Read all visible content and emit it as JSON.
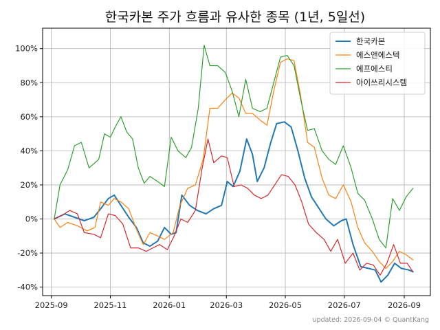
{
  "chart_data": {
    "type": "line",
    "title": "한국카본 주가 흐름과 유사한 종목 (1년, 5일선)",
    "footer": "updated: 2026-09-04 © QuantKang",
    "y_tick_values": [
      -40,
      -20,
      0,
      20,
      40,
      60,
      80,
      100
    ],
    "y_tick_labels": [
      "-40%",
      "-20%",
      "0%",
      "20%",
      "40%",
      "60%",
      "80%",
      "100%"
    ],
    "ylim": [
      -45,
      112
    ],
    "xlim": [
      "2025-08-23",
      "2026-09-28"
    ],
    "x_ticks": [
      "2025-09-01",
      "2025-11-01",
      "2026-01-01",
      "2026-03-01",
      "2026-05-01",
      "2026-07-01",
      "2026-09-01"
    ],
    "x_tick_labels": [
      "2025-09",
      "2025-11",
      "2026-01",
      "2026-03",
      "2026-05",
      "2026-07",
      "2026-09"
    ],
    "grid": true,
    "legend_position": "top-right",
    "series": [
      {
        "name": "한국카본",
        "color": "#1f77b4",
        "width": 2,
        "points": [
          [
            "2025-09-04",
            0
          ],
          [
            "2025-09-15",
            3
          ],
          [
            "2025-09-25",
            1
          ],
          [
            "2025-10-05",
            -1
          ],
          [
            "2025-10-15",
            1
          ],
          [
            "2025-10-22",
            6
          ],
          [
            "2025-10-30",
            12
          ],
          [
            "2025-11-05",
            14
          ],
          [
            "2025-11-12",
            8
          ],
          [
            "2025-11-20",
            1
          ],
          [
            "2025-11-28",
            -5
          ],
          [
            "2025-12-05",
            -14
          ],
          [
            "2025-12-12",
            -16
          ],
          [
            "2025-12-20",
            -13
          ],
          [
            "2025-12-27",
            -5
          ],
          [
            "2026-01-03",
            -9
          ],
          [
            "2026-01-08",
            -8
          ],
          [
            "2026-01-14",
            14
          ],
          [
            "2026-01-22",
            8
          ],
          [
            "2026-01-30",
            5
          ],
          [
            "2026-02-08",
            3
          ],
          [
            "2026-02-16",
            6
          ],
          [
            "2026-02-24",
            8
          ],
          [
            "2026-03-02",
            22
          ],
          [
            "2026-03-08",
            19
          ],
          [
            "2026-03-15",
            28
          ],
          [
            "2026-03-22",
            47
          ],
          [
            "2026-03-28",
            38
          ],
          [
            "2026-04-02",
            22
          ],
          [
            "2026-04-09",
            30
          ],
          [
            "2026-04-16",
            45
          ],
          [
            "2026-04-22",
            56
          ],
          [
            "2026-04-30",
            57
          ],
          [
            "2026-05-07",
            54
          ],
          [
            "2026-05-14",
            40
          ],
          [
            "2026-05-21",
            24
          ],
          [
            "2026-05-28",
            13
          ],
          [
            "2026-06-05",
            6
          ],
          [
            "2026-06-12",
            0
          ],
          [
            "2026-06-20",
            -4
          ],
          [
            "2026-06-28",
            -1
          ],
          [
            "2026-07-03",
            0
          ],
          [
            "2026-07-10",
            -15
          ],
          [
            "2026-07-18",
            -28
          ],
          [
            "2026-07-26",
            -29
          ],
          [
            "2026-08-02",
            -30
          ],
          [
            "2026-08-08",
            -37
          ],
          [
            "2026-08-15",
            -33
          ],
          [
            "2026-08-22",
            -26
          ],
          [
            "2026-08-29",
            -29
          ],
          [
            "2026-09-06",
            -30
          ],
          [
            "2026-09-10",
            -31
          ]
        ]
      },
      {
        "name": "에스앤에스텍",
        "color": "#ff7f0e",
        "width": 1.2,
        "points": [
          [
            "2025-09-04",
            0
          ],
          [
            "2025-09-10",
            -5
          ],
          [
            "2025-09-18",
            -2
          ],
          [
            "2025-09-28",
            -4
          ],
          [
            "2025-10-08",
            -7
          ],
          [
            "2025-10-16",
            -5
          ],
          [
            "2025-10-22",
            10
          ],
          [
            "2025-10-30",
            8
          ],
          [
            "2025-11-05",
            12
          ],
          [
            "2025-11-12",
            10
          ],
          [
            "2025-11-20",
            6
          ],
          [
            "2025-11-28",
            -6
          ],
          [
            "2025-12-05",
            -15
          ],
          [
            "2025-12-12",
            -8
          ],
          [
            "2025-12-20",
            -10
          ],
          [
            "2025-12-27",
            -12
          ],
          [
            "2026-01-05",
            -8
          ],
          [
            "2026-01-12",
            8
          ],
          [
            "2026-01-20",
            18
          ],
          [
            "2026-01-28",
            20
          ],
          [
            "2026-02-05",
            35
          ],
          [
            "2026-02-12",
            65
          ],
          [
            "2026-02-20",
            65
          ],
          [
            "2026-02-28",
            70
          ],
          [
            "2026-03-07",
            74
          ],
          [
            "2026-03-14",
            71
          ],
          [
            "2026-03-21",
            62
          ],
          [
            "2026-03-28",
            62
          ],
          [
            "2026-04-05",
            58
          ],
          [
            "2026-04-12",
            55
          ],
          [
            "2026-04-19",
            75
          ],
          [
            "2026-04-26",
            92
          ],
          [
            "2026-05-03",
            94
          ],
          [
            "2026-05-10",
            93
          ],
          [
            "2026-05-17",
            72
          ],
          [
            "2026-05-24",
            45
          ],
          [
            "2026-05-31",
            42
          ],
          [
            "2026-06-08",
            24
          ],
          [
            "2026-06-15",
            14
          ],
          [
            "2026-06-22",
            12
          ],
          [
            "2026-06-30",
            20
          ],
          [
            "2026-07-08",
            10
          ],
          [
            "2026-07-15",
            -5
          ],
          [
            "2026-07-22",
            -14
          ],
          [
            "2026-07-30",
            -19
          ],
          [
            "2026-08-06",
            -25
          ],
          [
            "2026-08-13",
            -29
          ],
          [
            "2026-08-20",
            -25
          ],
          [
            "2026-08-27",
            -19
          ],
          [
            "2026-09-03",
            -21
          ],
          [
            "2026-09-10",
            -24
          ]
        ]
      },
      {
        "name": "에프에스티",
        "color": "#2ca02c",
        "width": 1.2,
        "points": [
          [
            "2025-09-04",
            0
          ],
          [
            "2025-09-10",
            20
          ],
          [
            "2025-09-18",
            29
          ],
          [
            "2025-09-25",
            43
          ],
          [
            "2025-10-02",
            45
          ],
          [
            "2025-10-10",
            30
          ],
          [
            "2025-10-20",
            35
          ],
          [
            "2025-10-26",
            50
          ],
          [
            "2025-11-01",
            48
          ],
          [
            "2025-11-07",
            55
          ],
          [
            "2025-11-12",
            60
          ],
          [
            "2025-11-18",
            51
          ],
          [
            "2025-11-24",
            47
          ],
          [
            "2025-11-30",
            30
          ],
          [
            "2025-12-06",
            21
          ],
          [
            "2025-12-12",
            25
          ],
          [
            "2025-12-20",
            22
          ],
          [
            "2025-12-27",
            19
          ],
          [
            "2026-01-03",
            48
          ],
          [
            "2026-01-10",
            40
          ],
          [
            "2026-01-18",
            36
          ],
          [
            "2026-01-24",
            42
          ],
          [
            "2026-01-31",
            65
          ],
          [
            "2026-02-06",
            102
          ],
          [
            "2026-02-12",
            90
          ],
          [
            "2026-02-20",
            90
          ],
          [
            "2026-02-28",
            86
          ],
          [
            "2026-03-07",
            75
          ],
          [
            "2026-03-14",
            60
          ],
          [
            "2026-03-21",
            82
          ],
          [
            "2026-03-28",
            65
          ],
          [
            "2026-04-05",
            63
          ],
          [
            "2026-04-12",
            65
          ],
          [
            "2026-04-19",
            80
          ],
          [
            "2026-04-26",
            95
          ],
          [
            "2026-05-03",
            96
          ],
          [
            "2026-05-10",
            90
          ],
          [
            "2026-05-17",
            70
          ],
          [
            "2026-05-24",
            52
          ],
          [
            "2026-05-31",
            53
          ],
          [
            "2026-06-08",
            40
          ],
          [
            "2026-06-15",
            35
          ],
          [
            "2026-06-22",
            32
          ],
          [
            "2026-06-30",
            43
          ],
          [
            "2026-07-08",
            30
          ],
          [
            "2026-07-15",
            15
          ],
          [
            "2026-07-22",
            11
          ],
          [
            "2026-07-30",
            0
          ],
          [
            "2026-08-06",
            -12
          ],
          [
            "2026-08-13",
            -17
          ],
          [
            "2026-08-20",
            12
          ],
          [
            "2026-08-27",
            5
          ],
          [
            "2026-09-03",
            13
          ],
          [
            "2026-09-10",
            18
          ]
        ]
      },
      {
        "name": "아이쓰리시스템",
        "color": "#d62728",
        "width": 1.2,
        "points": [
          [
            "2025-09-04",
            0
          ],
          [
            "2025-09-12",
            2
          ],
          [
            "2025-09-20",
            5
          ],
          [
            "2025-09-28",
            3
          ],
          [
            "2025-10-05",
            -8
          ],
          [
            "2025-10-15",
            -9
          ],
          [
            "2025-10-22",
            -11
          ],
          [
            "2025-10-30",
            3
          ],
          [
            "2025-11-06",
            2
          ],
          [
            "2025-11-14",
            -3
          ],
          [
            "2025-11-22",
            -17
          ],
          [
            "2025-11-30",
            -17
          ],
          [
            "2025-12-08",
            -19
          ],
          [
            "2025-12-15",
            -17
          ],
          [
            "2025-12-22",
            -15
          ],
          [
            "2025-12-30",
            -18
          ],
          [
            "2026-01-06",
            -10
          ],
          [
            "2026-01-13",
            0
          ],
          [
            "2026-01-20",
            -2
          ],
          [
            "2026-01-28",
            5
          ],
          [
            "2026-02-04",
            30
          ],
          [
            "2026-02-10",
            47
          ],
          [
            "2026-02-16",
            33
          ],
          [
            "2026-02-24",
            37
          ],
          [
            "2026-03-02",
            36
          ],
          [
            "2026-03-09",
            19
          ],
          [
            "2026-03-16",
            20
          ],
          [
            "2026-03-23",
            18
          ],
          [
            "2026-03-30",
            14
          ],
          [
            "2026-04-06",
            12
          ],
          [
            "2026-04-13",
            14
          ],
          [
            "2026-04-20",
            20
          ],
          [
            "2026-04-27",
            26
          ],
          [
            "2026-05-04",
            25
          ],
          [
            "2026-05-11",
            20
          ],
          [
            "2026-05-18",
            10
          ],
          [
            "2026-05-25",
            -3
          ],
          [
            "2026-06-02",
            -8
          ],
          [
            "2026-06-10",
            -12
          ],
          [
            "2026-06-17",
            -19
          ],
          [
            "2026-06-24",
            -12
          ],
          [
            "2026-07-02",
            -26
          ],
          [
            "2026-07-10",
            -20
          ],
          [
            "2026-07-17",
            -30
          ],
          [
            "2026-07-24",
            -26
          ],
          [
            "2026-07-31",
            -27
          ],
          [
            "2026-08-07",
            -33
          ],
          [
            "2026-08-14",
            -26
          ],
          [
            "2026-08-21",
            -15
          ],
          [
            "2026-08-28",
            -26
          ],
          [
            "2026-09-04",
            -26
          ],
          [
            "2026-09-10",
            -31
          ]
        ]
      }
    ]
  }
}
